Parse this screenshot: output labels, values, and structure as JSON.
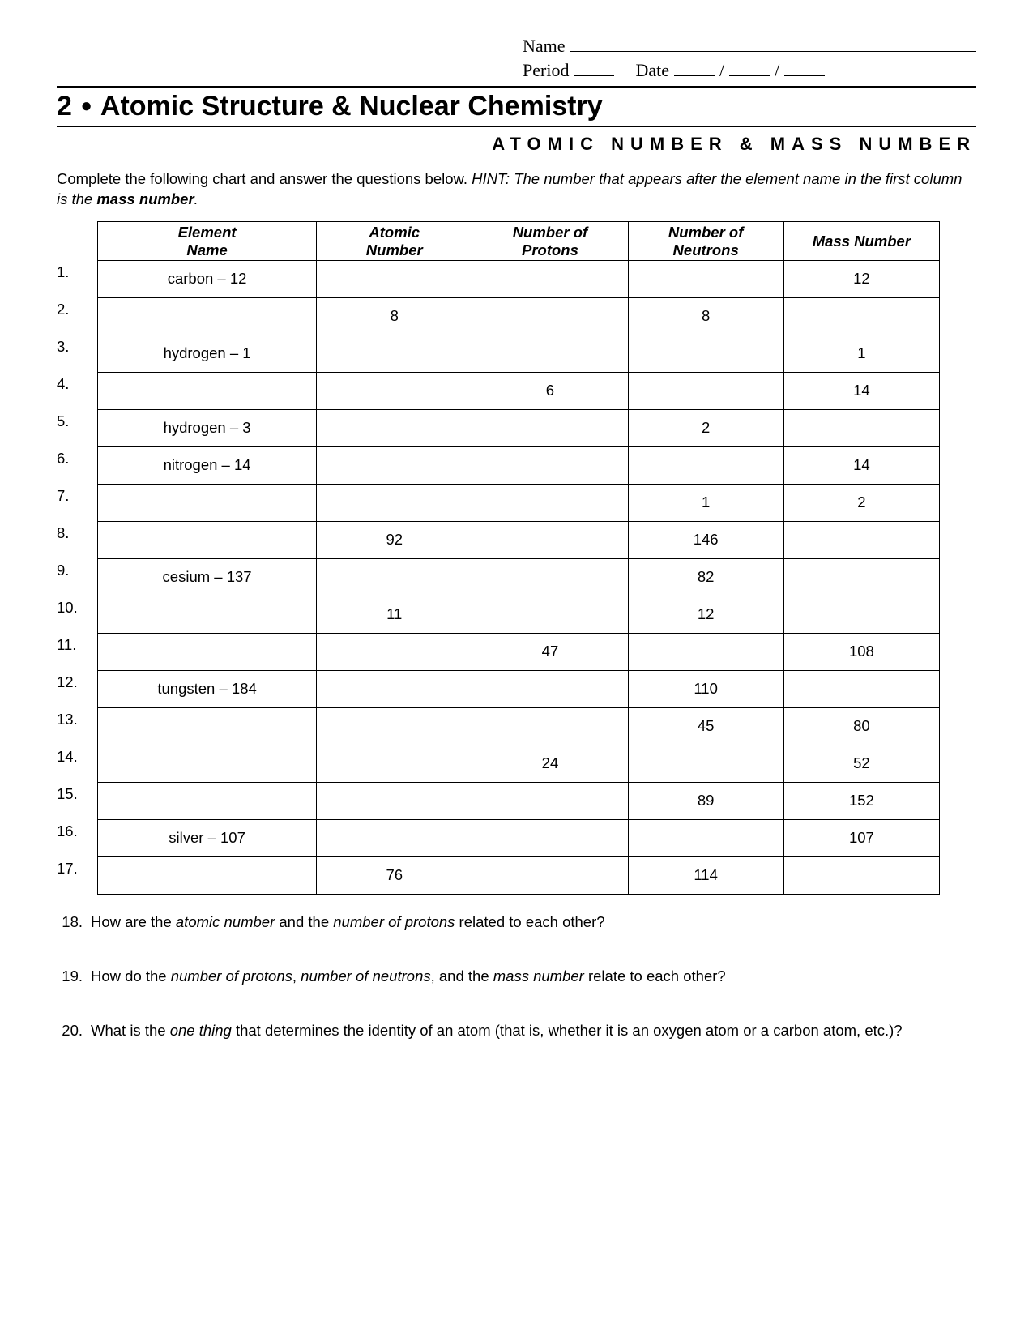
{
  "header": {
    "name_label": "Name",
    "period_label": "Period",
    "date_label": "Date",
    "date_sep": "/"
  },
  "chapter": {
    "number": "2",
    "title": "Atomic Structure & Nuclear Chemistry",
    "subtitle": "ATOMIC NUMBER & MASS NUMBER"
  },
  "instructions": {
    "lead": "Complete the following chart and answer the questions below.  ",
    "hint_prefix": "HINT: The number that appears after the element name in the first column is the ",
    "hint_bold": "mass number",
    "hint_suffix": "."
  },
  "table": {
    "headers": {
      "element": "Element Name",
      "atomic": "Atomic Number",
      "protons": "Number of Protons",
      "neutrons": "Number of Neutrons",
      "mass": "Mass Number"
    },
    "rows": [
      {
        "n": "1.",
        "element": "carbon – 12",
        "atomic": "",
        "protons": "",
        "neutrons": "",
        "mass": "12"
      },
      {
        "n": "2.",
        "element": "",
        "atomic": "8",
        "protons": "",
        "neutrons": "8",
        "mass": ""
      },
      {
        "n": "3.",
        "element": "hydrogen – 1",
        "atomic": "",
        "protons": "",
        "neutrons": "",
        "mass": "1"
      },
      {
        "n": "4.",
        "element": "",
        "atomic": "",
        "protons": "6",
        "neutrons": "",
        "mass": "14"
      },
      {
        "n": "5.",
        "element": "hydrogen – 3",
        "atomic": "",
        "protons": "",
        "neutrons": "2",
        "mass": ""
      },
      {
        "n": "6.",
        "element": "nitrogen – 14",
        "atomic": "",
        "protons": "",
        "neutrons": "",
        "mass": "14"
      },
      {
        "n": "7.",
        "element": "",
        "atomic": "",
        "protons": "",
        "neutrons": "1",
        "mass": "2"
      },
      {
        "n": "8.",
        "element": "",
        "atomic": "92",
        "protons": "",
        "neutrons": "146",
        "mass": ""
      },
      {
        "n": "9.",
        "element": "cesium – 137",
        "atomic": "",
        "protons": "",
        "neutrons": "82",
        "mass": ""
      },
      {
        "n": "10.",
        "element": "",
        "atomic": "11",
        "protons": "",
        "neutrons": "12",
        "mass": ""
      },
      {
        "n": "11.",
        "element": "",
        "atomic": "",
        "protons": "47",
        "neutrons": "",
        "mass": "108"
      },
      {
        "n": "12.",
        "element": "tungsten – 184",
        "atomic": "",
        "protons": "",
        "neutrons": "110",
        "mass": ""
      },
      {
        "n": "13.",
        "element": "",
        "atomic": "",
        "protons": "",
        "neutrons": "45",
        "mass": "80"
      },
      {
        "n": "14.",
        "element": "",
        "atomic": "",
        "protons": "24",
        "neutrons": "",
        "mass": "52"
      },
      {
        "n": "15.",
        "element": "",
        "atomic": "",
        "protons": "",
        "neutrons": "89",
        "mass": "152"
      },
      {
        "n": "16.",
        "element": "silver – 107",
        "atomic": "",
        "protons": "",
        "neutrons": "",
        "mass": "107"
      },
      {
        "n": "17.",
        "element": "",
        "atomic": "76",
        "protons": "",
        "neutrons": "114",
        "mass": ""
      }
    ]
  },
  "questions": [
    {
      "n": "18.",
      "html": "How are the <i>atomic number</i> and the <i>number of protons</i> related to each other?"
    },
    {
      "n": "19.",
      "html": "How do the <i>number of protons</i>, <i>number of neutrons</i>, and the <i>mass number</i> relate to each other?"
    },
    {
      "n": "20.",
      "html": "What is the <i>one thing</i> that determines the identity of an atom (that is, whether it is an oxygen atom or a carbon atom, etc.)?"
    }
  ]
}
